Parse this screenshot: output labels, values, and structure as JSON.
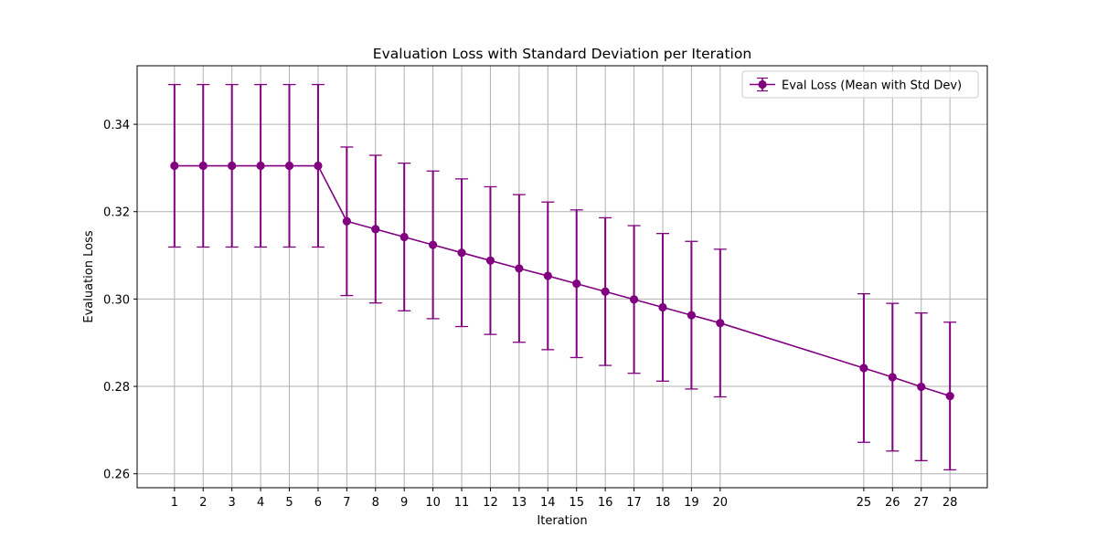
{
  "chart_data": {
    "type": "line",
    "title": "Evaluation Loss with Standard Deviation per Iteration",
    "xlabel": "Iteration",
    "ylabel": "Evaluation Loss",
    "x": [
      1,
      2,
      3,
      4,
      5,
      6,
      7,
      8,
      9,
      10,
      11,
      12,
      13,
      14,
      15,
      16,
      17,
      18,
      19,
      20,
      25,
      26,
      27,
      28
    ],
    "xticks": [
      1,
      2,
      3,
      4,
      5,
      6,
      7,
      8,
      9,
      10,
      11,
      12,
      13,
      14,
      15,
      16,
      17,
      18,
      19,
      20,
      25,
      26,
      27,
      28
    ],
    "yticks": [
      0.26,
      0.28,
      0.3,
      0.32,
      0.34
    ],
    "ytick_labels": [
      "0.26",
      "0.28",
      "0.30",
      "0.32",
      "0.34"
    ],
    "xlim": [
      -0.3,
      29.3
    ],
    "ylim": [
      0.2568,
      0.3534
    ],
    "grid": true,
    "legend": {
      "position": "upper right"
    },
    "series": [
      {
        "name": "Eval Loss (Mean with Std Dev)",
        "color": "#800080",
        "marker": "circle",
        "values": [
          0.3305,
          0.3305,
          0.3305,
          0.3305,
          0.3305,
          0.3305,
          0.3178,
          0.316,
          0.3142,
          0.3124,
          0.3106,
          0.3088,
          0.307,
          0.3053,
          0.3035,
          0.3017,
          0.2999,
          0.2981,
          0.2963,
          0.2945,
          0.2842,
          0.2821,
          0.2799,
          0.2778
        ],
        "std": [
          0.0186,
          0.0186,
          0.0186,
          0.0186,
          0.0186,
          0.0186,
          0.017,
          0.0169,
          0.0169,
          0.0169,
          0.0169,
          0.0169,
          0.0169,
          0.0169,
          0.0169,
          0.0169,
          0.0169,
          0.0169,
          0.0169,
          0.0169,
          0.017,
          0.0169,
          0.0169,
          0.0169
        ]
      }
    ]
  }
}
